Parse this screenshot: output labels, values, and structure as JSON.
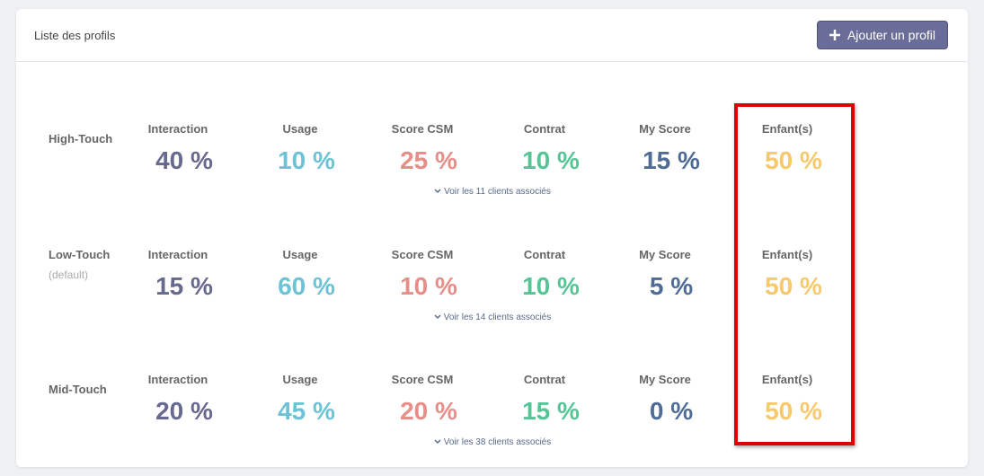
{
  "header": {
    "title": "Liste des profils",
    "button": "Ajouter un profil"
  },
  "profiles": [
    {
      "name": "High-Touch",
      "metrics": [
        {
          "label": "Interaction",
          "value": "40 %",
          "color": "#67698e"
        },
        {
          "label": "Usage",
          "value": "10 %",
          "color": "#6cc3d5"
        },
        {
          "label": "Score CSM",
          "value": "25 %",
          "color": "#e88e89"
        },
        {
          "label": "Contrat",
          "value": "10 %",
          "color": "#56c596"
        },
        {
          "label": "My Score",
          "value": "15 %",
          "color": "#4f6c96"
        },
        {
          "label": "Enfant(s)",
          "value": "50 %",
          "color": "#f8c96c"
        }
      ],
      "link": "Voir les 11 clients associés"
    },
    {
      "name": "Low-Touch",
      "note": "(default)",
      "metrics": [
        {
          "label": "Interaction",
          "value": "15 %",
          "color": "#67698e"
        },
        {
          "label": "Usage",
          "value": "60 %",
          "color": "#6cc3d5"
        },
        {
          "label": "Score CSM",
          "value": "10 %",
          "color": "#e88e89"
        },
        {
          "label": "Contrat",
          "value": "10 %",
          "color": "#56c596"
        },
        {
          "label": "My Score",
          "value": "5 %",
          "color": "#4f6c96"
        },
        {
          "label": "Enfant(s)",
          "value": "50 %",
          "color": "#f8c96c"
        }
      ],
      "link": "Voir les 14 clients associés"
    },
    {
      "name": "Mid-Touch",
      "metrics": [
        {
          "label": "Interaction",
          "value": "20 %",
          "color": "#67698e"
        },
        {
          "label": "Usage",
          "value": "45 %",
          "color": "#6cc3d5"
        },
        {
          "label": "Score CSM",
          "value": "20 %",
          "color": "#e88e89"
        },
        {
          "label": "Contrat",
          "value": "15 %",
          "color": "#56c596"
        },
        {
          "label": "My Score",
          "value": "0 %",
          "color": "#4f6c96"
        },
        {
          "label": "Enfant(s)",
          "value": "50 %",
          "color": "#f8c96c"
        }
      ],
      "link": "Voir les 38 clients associés"
    }
  ]
}
